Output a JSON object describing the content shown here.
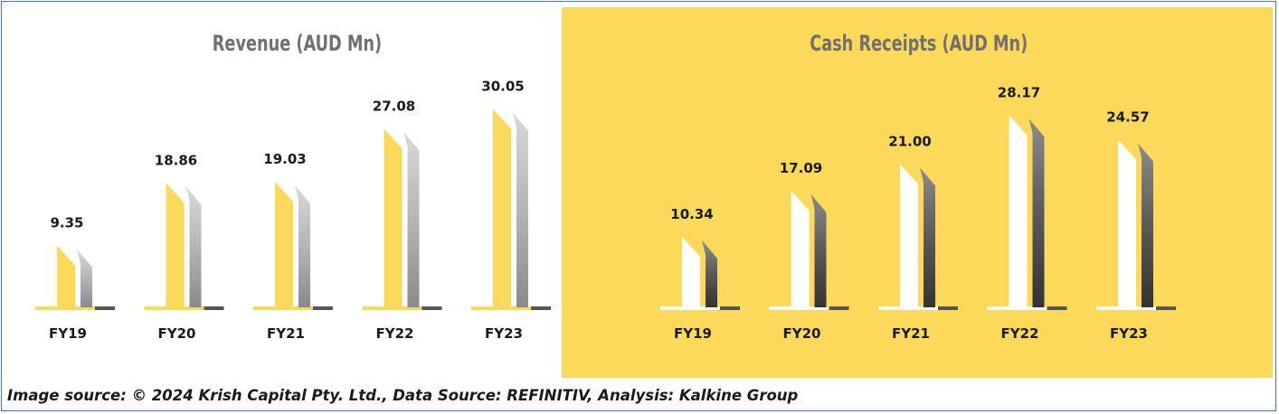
{
  "charts": {
    "revenue": {
      "title": "Revenue (AUD Mn)"
    },
    "cash_receipts": {
      "title": "Cash Receipts (AUD Mn)"
    }
  },
  "source_note": "Image source: © 2024 Krish Capital Pty. Ltd., Data Source: REFINITIV, Analysis: Kalkine Group",
  "colors": {
    "yellow": "#fcd95a",
    "white": "#ffffff",
    "grey_dark": "#3a3a3a",
    "grey_light": "#d6d6d6",
    "title_grey": "#707070"
  },
  "chart_data": [
    {
      "type": "bar",
      "title": "Revenue (AUD Mn)",
      "categories": [
        "FY19",
        "FY20",
        "FY21",
        "FY22",
        "FY23"
      ],
      "values": [
        9.35,
        18.86,
        19.03,
        27.08,
        30.05
      ],
      "value_labels": [
        "9.35",
        "18.86",
        "19.03",
        "27.08",
        "30.05"
      ],
      "xlabel": "",
      "ylabel": "",
      "grid": false,
      "legend": "none"
    },
    {
      "type": "bar",
      "title": "Cash Receipts (AUD Mn)",
      "categories": [
        "FY19",
        "FY20",
        "FY21",
        "FY22",
        "FY23"
      ],
      "values": [
        10.34,
        17.09,
        21.0,
        28.17,
        24.57
      ],
      "value_labels": [
        "10.34",
        "17.09",
        "21.00",
        "28.17",
        "24.57"
      ],
      "xlabel": "",
      "ylabel": "",
      "grid": false,
      "legend": "none"
    }
  ]
}
